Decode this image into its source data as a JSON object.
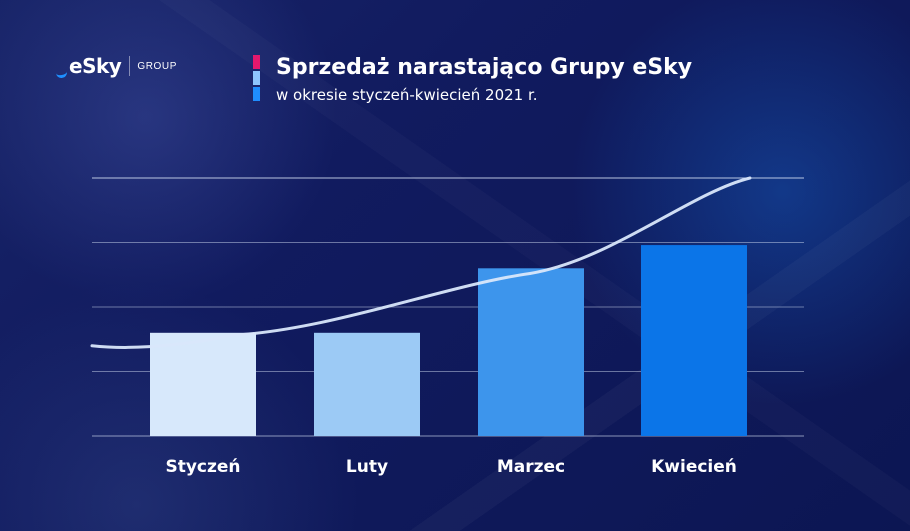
{
  "branding": {
    "logo_text": "eSky",
    "group_text": "GROUP"
  },
  "chart_data": {
    "type": "bar",
    "title": "Sprzedaż narastająco Grupy eSky",
    "subtitle": "w okresie styczeń-kwiecień 2021 r.",
    "categories": [
      "Styczeń",
      "Luty",
      "Marzec",
      "Kwiecień"
    ],
    "values": [
      40,
      40,
      65,
      74
    ],
    "trend_values": [
      35,
      39,
      63,
      100
    ],
    "ylim": [
      0,
      100
    ],
    "grid": true,
    "legend": false,
    "bar_colors": [
      "#d7e8fb",
      "#9ccaf5",
      "#3d95ec",
      "#0b75e8"
    ],
    "trend_color": "#d9e7fb",
    "grid_color": "#d6e1f5"
  },
  "title_marker_colors": [
    "#e3186d",
    "#8ec6ff",
    "#1f8dff"
  ]
}
